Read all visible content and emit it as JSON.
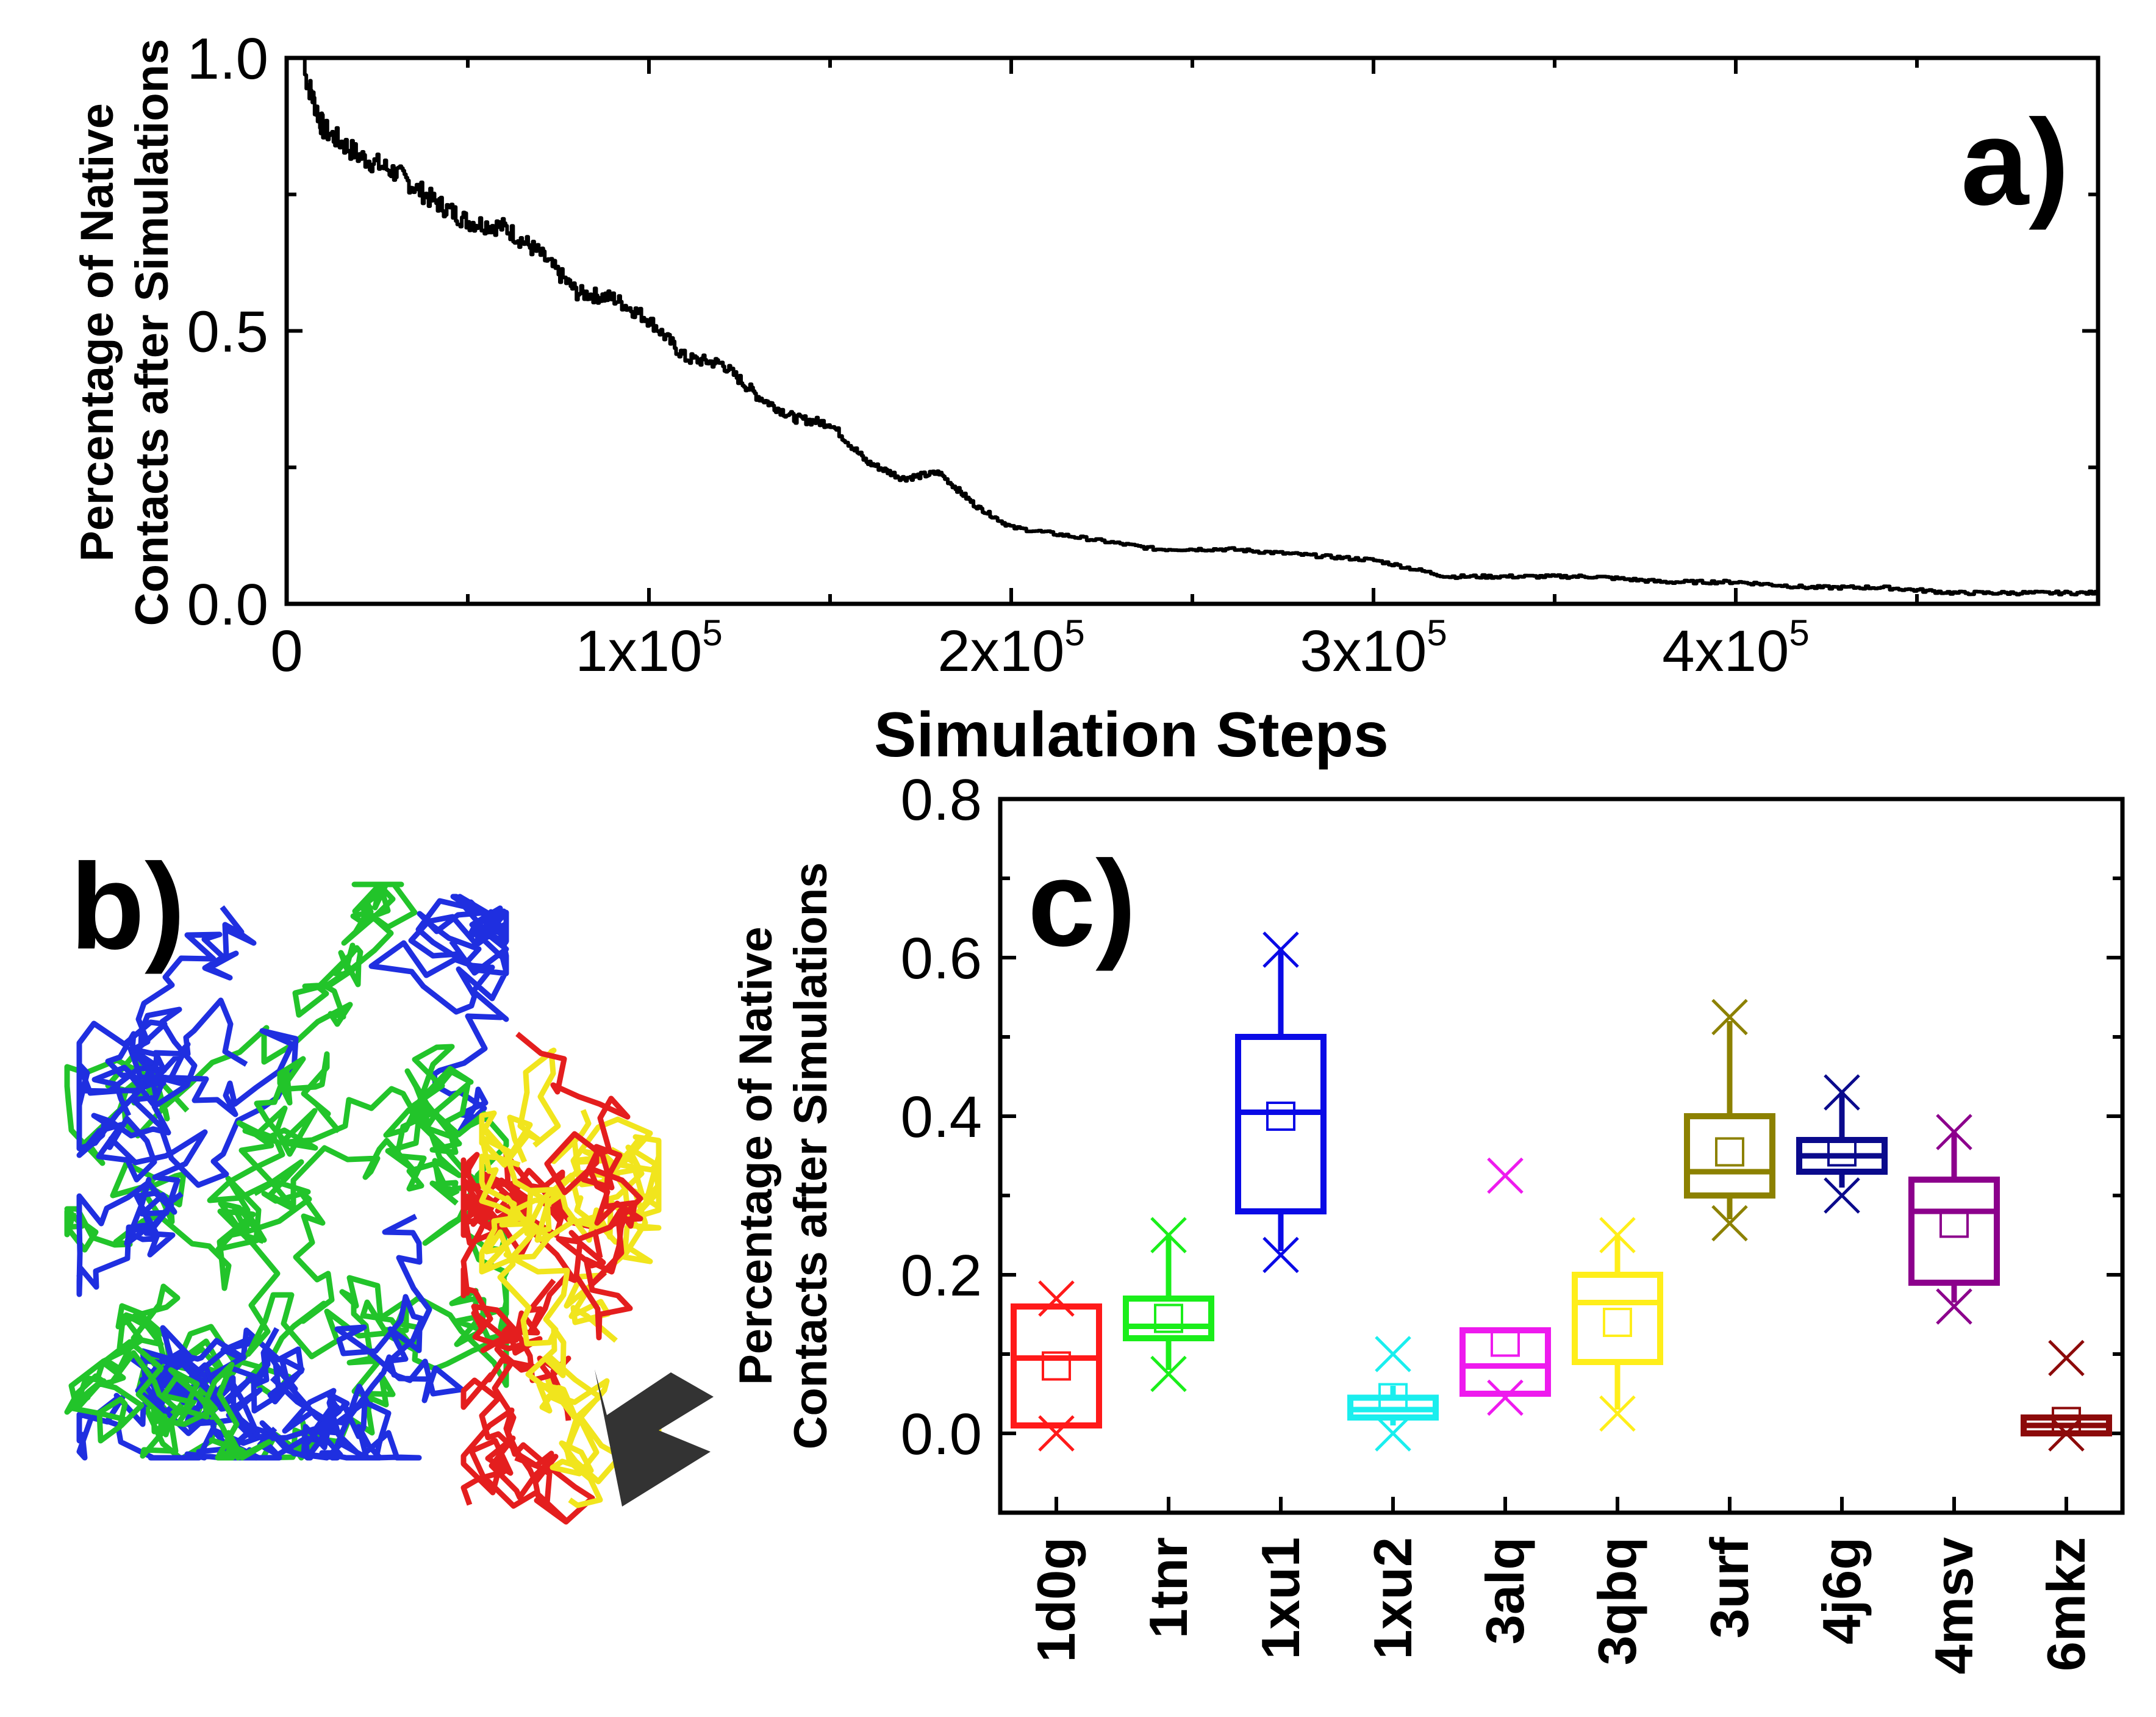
{
  "colors": {
    "line": "#000000",
    "protein_green": "#22c42a",
    "protein_blue": "#1f2fe0",
    "protein_red": "#e41e1e",
    "protein_yellow": "#f1e51d",
    "arrow": "#333333"
  },
  "panel_b": {
    "label": "b)",
    "description_icons": [
      "protein-structure-blue-green",
      "protein-structure-red-yellow",
      "arrow-icon"
    ]
  },
  "chart_data": [
    {
      "panel": "a)",
      "type": "line",
      "xlabel": "Simulation Steps",
      "ylabel_line1": "Percentage of Native",
      "ylabel_line2": "Contacts after Simulations",
      "xlim": [
        0,
        500000
      ],
      "ylim": [
        0.0,
        1.0
      ],
      "xticks": [
        {
          "value": 0,
          "label": "0",
          "exp": ""
        },
        {
          "value": 100000,
          "label": "1x10",
          "exp": "5"
        },
        {
          "value": 200000,
          "label": "2x10",
          "exp": "5"
        },
        {
          "value": 300000,
          "label": "3x10",
          "exp": "5"
        },
        {
          "value": 400000,
          "label": "4x10",
          "exp": "5"
        }
      ],
      "yticks": [
        {
          "value": 0.0,
          "label": "0.0"
        },
        {
          "value": 0.5,
          "label": "0.5"
        },
        {
          "value": 1.0,
          "label": "1.0"
        }
      ],
      "series": [
        {
          "x": [
            5000,
            10000,
            20000,
            30000,
            40000,
            50000,
            60000,
            70000,
            80000,
            90000,
            100000,
            110000,
            120000,
            130000,
            140000,
            150000,
            160000,
            170000,
            180000,
            190000,
            200000,
            220000,
            240000,
            260000,
            280000,
            300000,
            320000,
            340000,
            360000,
            380000,
            400000,
            420000,
            440000,
            460000,
            480000,
            500000
          ],
          "y": [
            0.97,
            0.87,
            0.82,
            0.79,
            0.74,
            0.7,
            0.69,
            0.64,
            0.57,
            0.56,
            0.52,
            0.45,
            0.44,
            0.38,
            0.34,
            0.33,
            0.26,
            0.23,
            0.24,
            0.18,
            0.14,
            0.12,
            0.1,
            0.1,
            0.09,
            0.08,
            0.05,
            0.05,
            0.05,
            0.04,
            0.04,
            0.03,
            0.03,
            0.02,
            0.02,
            0.02
          ]
        }
      ]
    },
    {
      "panel": "c)",
      "type": "box",
      "ylabel_line1": "Percentage of Native",
      "ylabel_line2": "Contacts after Simulations",
      "ylim": [
        -0.1,
        0.8
      ],
      "yticks": [
        {
          "value": 0.0,
          "label": "0.0"
        },
        {
          "value": 0.2,
          "label": "0.2"
        },
        {
          "value": 0.4,
          "label": "0.4"
        },
        {
          "value": 0.6,
          "label": "0.6"
        },
        {
          "value": 0.8,
          "label": "0.8"
        }
      ],
      "categories": [
        "1d0g",
        "1tnr",
        "1xu1",
        "1xu2",
        "3alq",
        "3qbq",
        "3urf",
        "4j6g",
        "4msv",
        "6mkz"
      ],
      "boxes": [
        {
          "name": "1d0g",
          "color": "#ff1a1a",
          "q1": 0.01,
          "median": 0.095,
          "q3": 0.16,
          "mean": 0.085,
          "whisker_low": 0.01,
          "whisker_high": 0.16,
          "extremes": [
            0.0,
            0.17
          ]
        },
        {
          "name": "1tnr",
          "color": "#1aee1a",
          "q1": 0.12,
          "median": 0.135,
          "q3": 0.17,
          "mean": 0.145,
          "whisker_low": 0.08,
          "whisker_high": 0.25,
          "extremes": [
            0.075,
            0.25
          ]
        },
        {
          "name": "1xu1",
          "color": "#0a0ae6",
          "q1": 0.28,
          "median": 0.405,
          "q3": 0.5,
          "mean": 0.4,
          "whisker_low": 0.23,
          "whisker_high": 0.61,
          "extremes": [
            0.225,
            0.61
          ]
        },
        {
          "name": "1xu2",
          "color": "#1aeeee",
          "q1": 0.02,
          "median": 0.03,
          "q3": 0.045,
          "mean": 0.045,
          "whisker_low": 0.01,
          "whisker_high": 0.06,
          "extremes": [
            0.0,
            0.1
          ]
        },
        {
          "name": "3alq",
          "color": "#ee1aee",
          "q1": 0.05,
          "median": 0.085,
          "q3": 0.13,
          "mean": 0.115,
          "whisker_low": 0.05,
          "whisker_high": 0.13,
          "extremes": [
            0.045,
            0.325
          ]
        },
        {
          "name": "3qbq",
          "color": "#ffee1a",
          "q1": 0.09,
          "median": 0.165,
          "q3": 0.2,
          "mean": 0.14,
          "whisker_low": 0.03,
          "whisker_high": 0.25,
          "extremes": [
            0.025,
            0.25
          ]
        },
        {
          "name": "3urf",
          "color": "#8c8100",
          "q1": 0.3,
          "median": 0.33,
          "q3": 0.4,
          "mean": 0.355,
          "whisker_low": 0.27,
          "whisker_high": 0.52,
          "extremes": [
            0.265,
            0.525
          ]
        },
        {
          "name": "4j6g",
          "color": "#0a0a8c",
          "q1": 0.33,
          "median": 0.35,
          "q3": 0.37,
          "mean": 0.355,
          "whisker_low": 0.31,
          "whisker_high": 0.43,
          "extremes": [
            0.3,
            0.43
          ]
        },
        {
          "name": "4msv",
          "color": "#8c008c",
          "q1": 0.19,
          "median": 0.28,
          "q3": 0.32,
          "mean": 0.265,
          "whisker_low": 0.165,
          "whisker_high": 0.38,
          "extremes": [
            0.16,
            0.38
          ]
        },
        {
          "name": "6mkz",
          "color": "#8c0a0a",
          "q1": 0.0,
          "median": 0.01,
          "q3": 0.02,
          "mean": 0.015,
          "whisker_low": 0.0,
          "whisker_high": 0.02,
          "extremes": [
            0.0,
            0.095
          ]
        }
      ]
    }
  ]
}
